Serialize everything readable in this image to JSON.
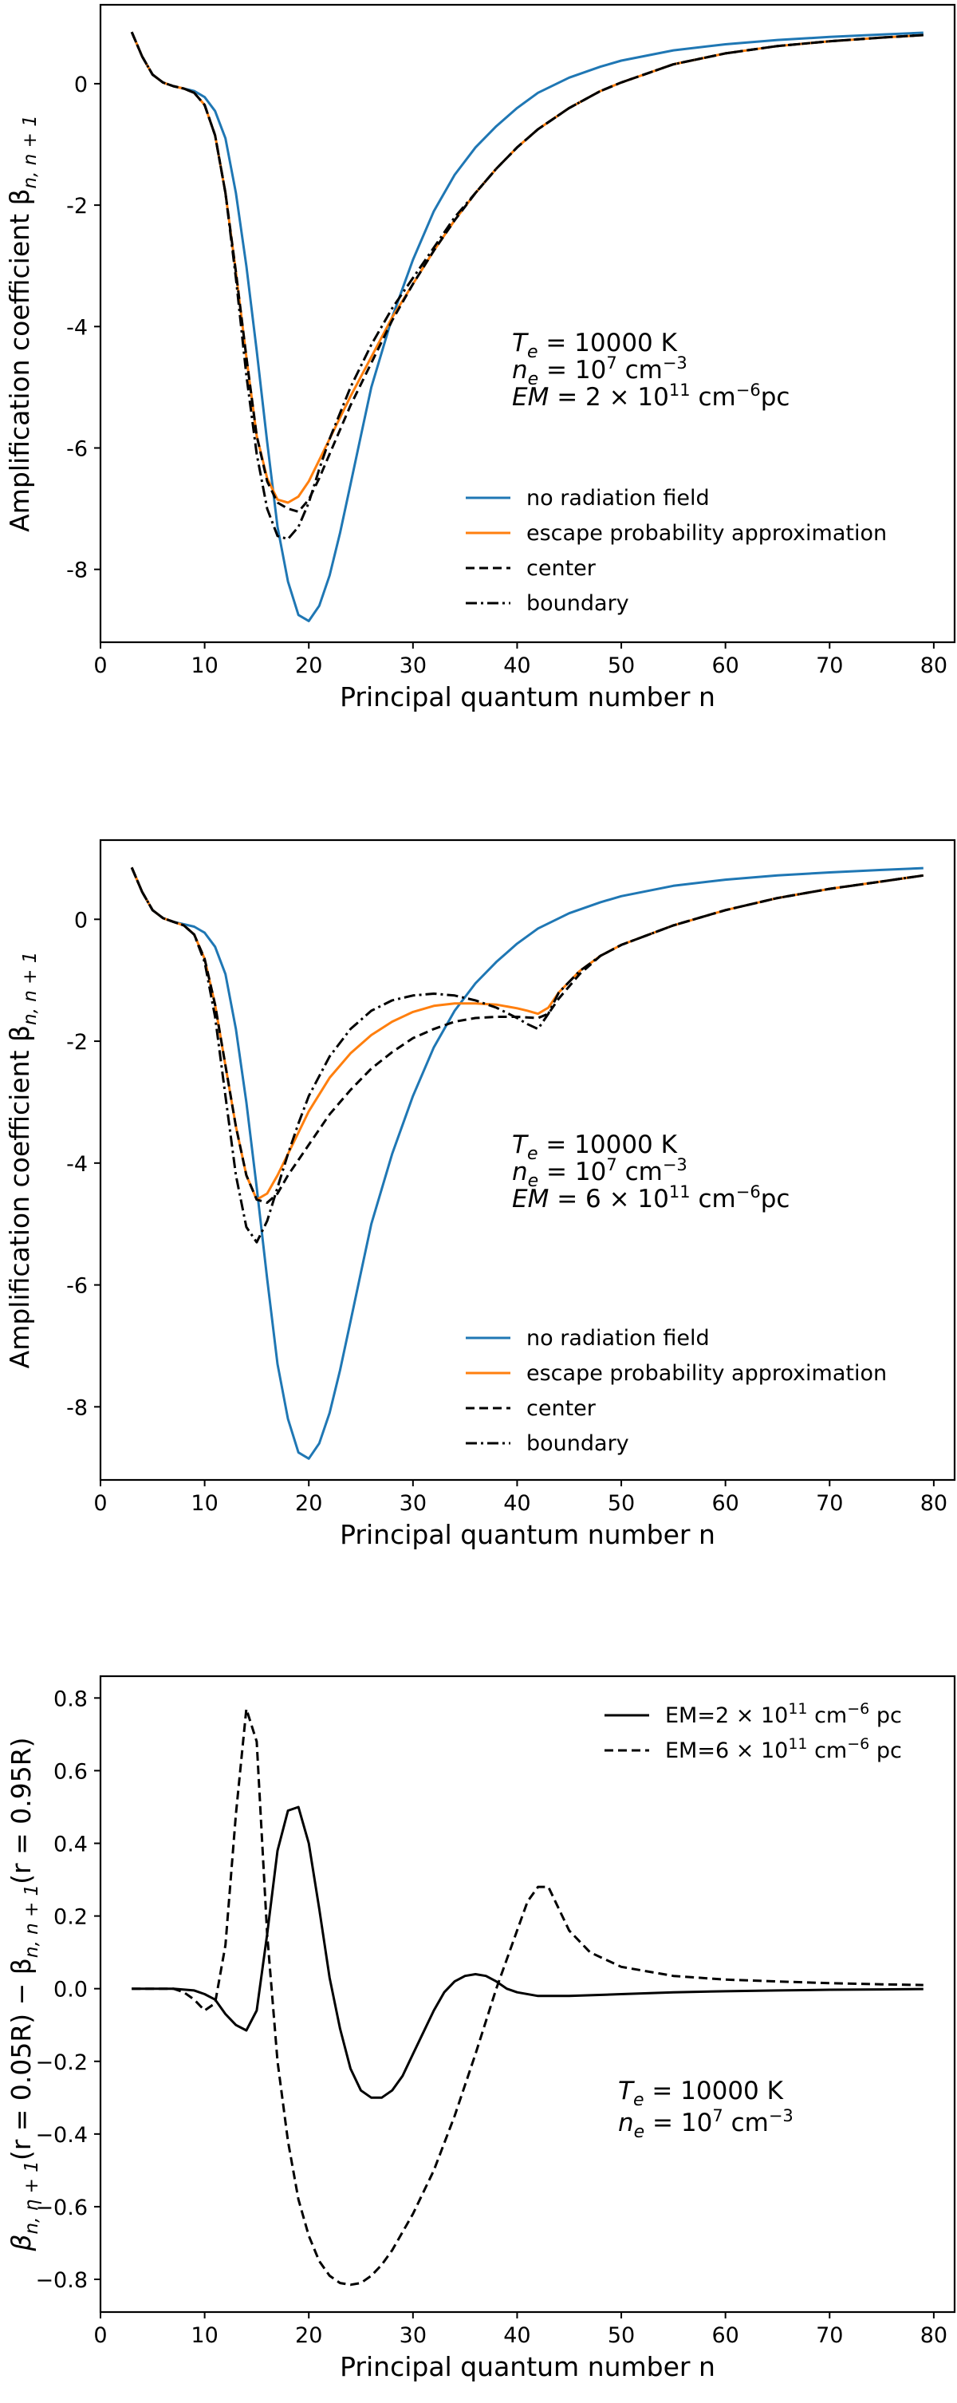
{
  "colors": {
    "blue": "#1f77b4",
    "orange": "#ff7f0e",
    "black": "#000000"
  },
  "chart_data": [
    {
      "type": "line",
      "xlabel": "Principal quantum number n",
      "ylabel": "Amplification coefficient β",
      "ylabel_sub": "n, n + 1",
      "xlim": [
        0,
        82
      ],
      "ylim": [
        -9.2,
        1.3
      ],
      "xticks": [
        0,
        10,
        20,
        30,
        40,
        50,
        60,
        70,
        80
      ],
      "yticks": [
        0,
        -2,
        -4,
        -6,
        -8
      ],
      "legend_position": "lower-right",
      "annotation": {
        "te": "T",
        "te_sub": "e",
        "te_rest": " = 10000 K",
        "ne": "n",
        "ne_sub": "e",
        "ne_mid": " = 10",
        "ne_exp": "7",
        "ne_rest": " cm",
        "ne_unit_exp": "−3",
        "em": "EM",
        "em_mid": " = 2 × 10",
        "em_exp": "11",
        "em_rest": " cm",
        "em_unit_exp": "−6",
        "em_tail": "pc"
      },
      "series": [
        {
          "name": "no radiation field",
          "color": "#1f77b4",
          "dash": "solid",
          "x": [
            3,
            4,
            5,
            6,
            7,
            8,
            9,
            10,
            11,
            12,
            13,
            14,
            15,
            16,
            17,
            18,
            19,
            20,
            21,
            22,
            23,
            24,
            25,
            26,
            28,
            30,
            32,
            34,
            36,
            38,
            40,
            42,
            45,
            48,
            50,
            55,
            60,
            65,
            70,
            75,
            79
          ],
          "y": [
            0.85,
            0.45,
            0.15,
            0.02,
            -0.04,
            -0.08,
            -0.12,
            -0.22,
            -0.45,
            -0.9,
            -1.8,
            -3.0,
            -4.4,
            -5.9,
            -7.3,
            -8.2,
            -8.75,
            -8.85,
            -8.6,
            -8.1,
            -7.4,
            -6.6,
            -5.8,
            -5.0,
            -3.85,
            -2.9,
            -2.1,
            -1.5,
            -1.05,
            -0.7,
            -0.4,
            -0.15,
            0.1,
            0.28,
            0.38,
            0.55,
            0.65,
            0.72,
            0.77,
            0.81,
            0.84
          ]
        },
        {
          "name": "escape probability approximation",
          "color": "#ff7f0e",
          "dash": "solid",
          "x": [
            3,
            4,
            5,
            6,
            7,
            8,
            9,
            10,
            11,
            12,
            13,
            14,
            15,
            16,
            17,
            18,
            19,
            20,
            21,
            22,
            24,
            26,
            28,
            30,
            32,
            34,
            36,
            38,
            40,
            42,
            45,
            48,
            50,
            55,
            60,
            65,
            70,
            75,
            79
          ],
          "y": [
            0.85,
            0.45,
            0.15,
            0.02,
            -0.04,
            -0.08,
            -0.15,
            -0.35,
            -0.85,
            -1.8,
            -3.1,
            -4.5,
            -5.8,
            -6.5,
            -6.85,
            -6.9,
            -6.8,
            -6.55,
            -6.2,
            -5.85,
            -5.15,
            -4.5,
            -3.85,
            -3.3,
            -2.75,
            -2.25,
            -1.8,
            -1.4,
            -1.05,
            -0.75,
            -0.4,
            -0.12,
            0.02,
            0.32,
            0.5,
            0.62,
            0.7,
            0.76,
            0.8
          ]
        },
        {
          "name": "center",
          "color": "#000000",
          "dash": "dashed",
          "x": [
            3,
            4,
            5,
            6,
            7,
            8,
            9,
            10,
            11,
            12,
            13,
            14,
            15,
            16,
            17,
            18,
            19,
            20,
            21,
            22,
            24,
            26,
            28,
            30,
            32,
            34,
            36,
            38,
            40,
            42,
            45,
            48,
            50,
            55,
            60,
            65,
            70,
            75,
            79
          ],
          "y": [
            0.85,
            0.45,
            0.15,
            0.02,
            -0.04,
            -0.08,
            -0.15,
            -0.35,
            -0.85,
            -1.8,
            -3.1,
            -4.5,
            -5.8,
            -6.55,
            -6.9,
            -7.0,
            -7.05,
            -6.85,
            -6.5,
            -6.1,
            -5.3,
            -4.6,
            -3.9,
            -3.3,
            -2.75,
            -2.25,
            -1.8,
            -1.4,
            -1.05,
            -0.75,
            -0.4,
            -0.12,
            0.02,
            0.32,
            0.5,
            0.62,
            0.7,
            0.76,
            0.8
          ]
        },
        {
          "name": "boundary",
          "color": "#000000",
          "dash": "dashdot",
          "x": [
            3,
            4,
            5,
            6,
            7,
            8,
            9,
            10,
            11,
            12,
            13,
            14,
            15,
            16,
            17,
            18,
            19,
            20,
            21,
            22,
            24,
            26,
            28,
            30,
            32,
            34,
            36,
            38,
            40,
            42,
            45,
            48,
            50,
            55,
            60,
            65,
            70,
            75,
            79
          ],
          "y": [
            0.85,
            0.45,
            0.15,
            0.02,
            -0.04,
            -0.08,
            -0.15,
            -0.35,
            -0.85,
            -1.8,
            -3.2,
            -4.8,
            -6.1,
            -7.0,
            -7.45,
            -7.5,
            -7.3,
            -6.9,
            -6.35,
            -5.85,
            -5.0,
            -4.3,
            -3.7,
            -3.2,
            -2.7,
            -2.2,
            -1.8,
            -1.4,
            -1.05,
            -0.75,
            -0.4,
            -0.12,
            0.02,
            0.32,
            0.5,
            0.62,
            0.7,
            0.76,
            0.8
          ]
        }
      ]
    },
    {
      "type": "line",
      "xlabel": "Principal quantum number n",
      "ylabel": "Amplification coefficient β",
      "ylabel_sub": "n, n + 1",
      "xlim": [
        0,
        82
      ],
      "ylim": [
        -9.2,
        1.3
      ],
      "xticks": [
        0,
        10,
        20,
        30,
        40,
        50,
        60,
        70,
        80
      ],
      "yticks": [
        0,
        -2,
        -4,
        -6,
        -8
      ],
      "legend_position": "lower-right",
      "annotation": {
        "te": "T",
        "te_sub": "e",
        "te_rest": " = 10000 K",
        "ne": "n",
        "ne_sub": "e",
        "ne_mid": " = 10",
        "ne_exp": "7",
        "ne_rest": " cm",
        "ne_unit_exp": "−3",
        "em": "EM",
        "em_mid": " = 6 × 10",
        "em_exp": "11",
        "em_rest": " cm",
        "em_unit_exp": "−6",
        "em_tail": "pc"
      },
      "series": [
        {
          "name": "no radiation field",
          "color": "#1f77b4",
          "dash": "solid",
          "x": [
            3,
            4,
            5,
            6,
            7,
            8,
            9,
            10,
            11,
            12,
            13,
            14,
            15,
            16,
            17,
            18,
            19,
            20,
            21,
            22,
            23,
            24,
            25,
            26,
            28,
            30,
            32,
            34,
            36,
            38,
            40,
            42,
            45,
            48,
            50,
            55,
            60,
            65,
            70,
            75,
            79
          ],
          "y": [
            0.85,
            0.45,
            0.15,
            0.02,
            -0.04,
            -0.08,
            -0.12,
            -0.22,
            -0.45,
            -0.9,
            -1.8,
            -3.0,
            -4.4,
            -5.9,
            -7.3,
            -8.2,
            -8.75,
            -8.85,
            -8.6,
            -8.1,
            -7.4,
            -6.6,
            -5.8,
            -5.0,
            -3.85,
            -2.9,
            -2.1,
            -1.5,
            -1.05,
            -0.7,
            -0.4,
            -0.15,
            0.1,
            0.28,
            0.38,
            0.55,
            0.65,
            0.72,
            0.77,
            0.81,
            0.84
          ]
        },
        {
          "name": "escape probability approximation",
          "color": "#ff7f0e",
          "dash": "solid",
          "x": [
            3,
            4,
            5,
            6,
            7,
            8,
            9,
            10,
            11,
            12,
            13,
            14,
            15,
            16,
            17,
            18,
            19,
            20,
            22,
            24,
            26,
            28,
            30,
            32,
            34,
            36,
            38,
            40,
            41,
            42,
            43,
            44,
            46,
            48,
            50,
            55,
            60,
            65,
            70,
            75,
            79
          ],
          "y": [
            0.85,
            0.45,
            0.15,
            0.02,
            -0.04,
            -0.1,
            -0.25,
            -0.65,
            -1.4,
            -2.4,
            -3.4,
            -4.2,
            -4.6,
            -4.5,
            -4.2,
            -3.85,
            -3.5,
            -3.15,
            -2.6,
            -2.2,
            -1.9,
            -1.68,
            -1.52,
            -1.42,
            -1.38,
            -1.38,
            -1.4,
            -1.46,
            -1.5,
            -1.55,
            -1.45,
            -1.2,
            -0.85,
            -0.6,
            -0.42,
            -0.1,
            0.15,
            0.35,
            0.5,
            0.62,
            0.72
          ]
        },
        {
          "name": "center",
          "color": "#000000",
          "dash": "dashed",
          "x": [
            3,
            4,
            5,
            6,
            7,
            8,
            9,
            10,
            11,
            12,
            13,
            14,
            15,
            16,
            17,
            18,
            19,
            20,
            22,
            24,
            26,
            28,
            30,
            32,
            34,
            36,
            38,
            40,
            42,
            43,
            44,
            46,
            48,
            50,
            55,
            60,
            65,
            70,
            75,
            79
          ],
          "y": [
            0.85,
            0.45,
            0.15,
            0.02,
            -0.04,
            -0.1,
            -0.25,
            -0.65,
            -1.4,
            -2.4,
            -3.4,
            -4.2,
            -4.6,
            -4.65,
            -4.5,
            -4.2,
            -3.95,
            -3.7,
            -3.2,
            -2.8,
            -2.45,
            -2.18,
            -1.95,
            -1.8,
            -1.68,
            -1.62,
            -1.6,
            -1.6,
            -1.62,
            -1.55,
            -1.3,
            -0.9,
            -0.6,
            -0.42,
            -0.1,
            0.15,
            0.35,
            0.5,
            0.62,
            0.72
          ]
        },
        {
          "name": "boundary",
          "color": "#000000",
          "dash": "dashdot",
          "x": [
            3,
            4,
            5,
            6,
            7,
            8,
            9,
            10,
            11,
            12,
            13,
            14,
            15,
            16,
            17,
            18,
            19,
            20,
            22,
            24,
            26,
            28,
            30,
            32,
            34,
            36,
            38,
            40,
            41,
            42,
            43,
            44,
            46,
            48,
            50,
            55,
            60,
            65,
            70,
            75,
            79
          ],
          "y": [
            0.85,
            0.45,
            0.15,
            0.02,
            -0.04,
            -0.1,
            -0.25,
            -0.7,
            -1.6,
            -2.9,
            -4.2,
            -5.05,
            -5.3,
            -4.95,
            -4.4,
            -3.85,
            -3.35,
            -2.9,
            -2.25,
            -1.8,
            -1.5,
            -1.33,
            -1.25,
            -1.22,
            -1.25,
            -1.33,
            -1.45,
            -1.62,
            -1.72,
            -1.8,
            -1.55,
            -1.2,
            -0.85,
            -0.6,
            -0.42,
            -0.1,
            0.15,
            0.35,
            0.5,
            0.62,
            0.72
          ]
        }
      ]
    },
    {
      "type": "line",
      "xlabel": "Principal quantum number n",
      "ylabel": "β",
      "ylabel_sub": "n, η + 1",
      "ylabel_mid": "(r = 0.05R) − β",
      "ylabel_sub2": "n, n + 1",
      "ylabel_tail": "(r = 0.95R)",
      "xlim": [
        0,
        82
      ],
      "ylim": [
        -0.89,
        0.86
      ],
      "xticks": [
        0,
        10,
        20,
        30,
        40,
        50,
        60,
        70,
        80
      ],
      "yticks": [
        "0.8",
        "0.6",
        "0.4",
        "0.2",
        "0.0",
        "−0.2",
        "−0.4",
        "−0.6",
        "−0.8"
      ],
      "ytick_values": [
        0.8,
        0.6,
        0.4,
        0.2,
        0.0,
        -0.2,
        -0.4,
        -0.6,
        -0.8
      ],
      "legend_position": "upper-right",
      "annotation": {
        "te": "T",
        "te_sub": "e",
        "te_rest": " = 10000 K",
        "ne": "n",
        "ne_sub": "e",
        "ne_mid": " = 10",
        "ne_exp": "7",
        "ne_rest": " cm",
        "ne_unit_exp": "−3"
      },
      "series": [
        {
          "name": "EM=2 × 10",
          "name_exp": "11",
          "name_rest": " cm",
          "name_unit_exp": "−6",
          "name_tail": " pc",
          "color": "#000000",
          "dash": "solid",
          "x": [
            3,
            5,
            7,
            9,
            10,
            11,
            12,
            13,
            14,
            15,
            16,
            17,
            18,
            19,
            20,
            21,
            22,
            23,
            24,
            25,
            26,
            27,
            28,
            29,
            30,
            31,
            32,
            33,
            34,
            35,
            36,
            37,
            38,
            39,
            40,
            42,
            45,
            50,
            55,
            60,
            65,
            70,
            75,
            79
          ],
          "y": [
            0.0,
            0.0,
            0.0,
            -0.005,
            -0.015,
            -0.03,
            -0.07,
            -0.1,
            -0.115,
            -0.06,
            0.15,
            0.38,
            0.49,
            0.5,
            0.4,
            0.22,
            0.03,
            -0.11,
            -0.22,
            -0.28,
            -0.3,
            -0.3,
            -0.28,
            -0.24,
            -0.18,
            -0.12,
            -0.06,
            -0.01,
            0.02,
            0.035,
            0.04,
            0.035,
            0.02,
            0.0,
            -0.01,
            -0.02,
            -0.02,
            -0.015,
            -0.01,
            -0.007,
            -0.005,
            -0.003,
            -0.002,
            -0.001
          ]
        },
        {
          "name": "EM=6 × 10",
          "name_exp": "11",
          "name_rest": " cm",
          "name_unit_exp": "−6",
          "name_tail": " pc",
          "color": "#000000",
          "dash": "dashed",
          "x": [
            3,
            5,
            7,
            8,
            9,
            10,
            11,
            12,
            13,
            14,
            15,
            16,
            17,
            18,
            19,
            20,
            21,
            22,
            23,
            24,
            25,
            26,
            27,
            28,
            30,
            32,
            34,
            36,
            38,
            40,
            41,
            42,
            43,
            44,
            45,
            47,
            50,
            55,
            60,
            65,
            70,
            75,
            79
          ],
          "y": [
            0.0,
            0.0,
            0.0,
            -0.01,
            -0.03,
            -0.06,
            -0.04,
            0.12,
            0.48,
            0.77,
            0.68,
            0.15,
            -0.2,
            -0.42,
            -0.58,
            -0.68,
            -0.75,
            -0.79,
            -0.81,
            -0.815,
            -0.81,
            -0.79,
            -0.76,
            -0.72,
            -0.62,
            -0.5,
            -0.35,
            -0.18,
            0.0,
            0.16,
            0.24,
            0.28,
            0.28,
            0.22,
            0.16,
            0.1,
            0.06,
            0.035,
            0.025,
            0.02,
            0.015,
            0.012,
            0.01
          ]
        }
      ]
    }
  ]
}
